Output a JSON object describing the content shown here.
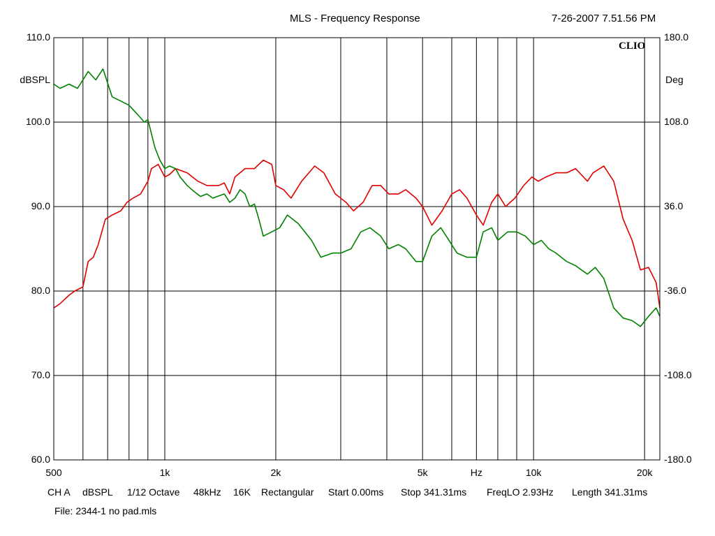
{
  "header": {
    "title": "MLS - Frequency Response",
    "timestamp": "7-26-2007 7.51.56 PM"
  },
  "brand": "CLIO",
  "footer": {
    "channel": "CH A",
    "unit": "dBSPL",
    "smoothing": "1/12 Octave",
    "sample_rate": "48kHz",
    "size": "16K",
    "window": "Rectangular",
    "start": "Start 0.00ms",
    "stop": "Stop 341.31ms",
    "freqlo": "FreqLO 2.93Hz",
    "length": "Length 341.31ms",
    "file": "File: 2344-1 no pad.mls"
  },
  "colors": {
    "magnitude": "#e00000",
    "phase": "#008000",
    "grid": "#000000"
  },
  "chart_data": {
    "type": "line",
    "title": "MLS - Frequency Response",
    "x_scale": "log",
    "xlim": [
      500,
      22000
    ],
    "x_tick_labels": [
      {
        "value": 500,
        "label": "500"
      },
      {
        "value": 1000,
        "label": "1k"
      },
      {
        "value": 2000,
        "label": "2k"
      },
      {
        "value": 5000,
        "label": "5k"
      },
      {
        "value": 7000,
        "label": "Hz"
      },
      {
        "value": 10000,
        "label": "10k"
      },
      {
        "value": 20000,
        "label": "20k"
      }
    ],
    "x_gridlines": [
      600,
      700,
      800,
      900,
      1000,
      2000,
      3000,
      4000,
      5000,
      6000,
      7000,
      8000,
      9000,
      10000,
      20000
    ],
    "left_axis": {
      "label": "dBSPL",
      "range": [
        60,
        110
      ],
      "ticks": [
        "110.0",
        "100.0",
        "90.0",
        "80.0",
        "70.0",
        "60.0"
      ]
    },
    "right_axis": {
      "label": "Deg",
      "range": [
        -180,
        180
      ],
      "ticks": [
        "180.0",
        "108.0",
        "36.0",
        "-36.0",
        "-108.0",
        "-180.0"
      ]
    },
    "grid": true,
    "series": [
      {
        "key": "magnitude",
        "axis": "left",
        "x": [
          500,
          520,
          550,
          570,
          600,
          620,
          640,
          660,
          690,
          720,
          760,
          790,
          820,
          860,
          900,
          920,
          960,
          1000,
          1030,
          1070,
          1150,
          1230,
          1300,
          1400,
          1450,
          1500,
          1550,
          1650,
          1750,
          1850,
          1950,
          2000,
          2100,
          2200,
          2350,
          2550,
          2700,
          2900,
          3100,
          3250,
          3450,
          3650,
          3850,
          4050,
          4300,
          4500,
          4800,
          5000,
          5300,
          5650,
          6000,
          6300,
          6600,
          7000,
          7300,
          7700,
          8000,
          8400,
          8900,
          9400,
          9900,
          10300,
          10800,
          11500,
          12300,
          13000,
          14000,
          14500,
          15500,
          16500,
          17500,
          18500,
          19500,
          20500,
          21500,
          22000
        ],
        "y": [
          78.0,
          78.5,
          79.5,
          80.0,
          80.5,
          83.5,
          84.0,
          85.5,
          88.5,
          89.0,
          89.5,
          90.5,
          91.0,
          91.5,
          93.0,
          94.5,
          95.0,
          93.5,
          93.8,
          94.5,
          94.0,
          93.0,
          92.5,
          92.5,
          92.8,
          91.5,
          93.5,
          94.5,
          94.5,
          95.5,
          95.0,
          92.5,
          92.0,
          91.0,
          93.0,
          94.8,
          94.0,
          91.5,
          90.5,
          89.5,
          90.5,
          92.5,
          92.5,
          91.5,
          91.5,
          92.0,
          91.0,
          90.0,
          87.8,
          89.5,
          91.5,
          92.0,
          91.0,
          89.0,
          87.8,
          90.5,
          91.5,
          90.0,
          91.0,
          92.5,
          93.5,
          93.0,
          93.5,
          94.0,
          94.0,
          94.5,
          93.0,
          94.0,
          94.8,
          93.0,
          88.5,
          86.0,
          82.5,
          82.8,
          81.0,
          78.0
        ]
      },
      {
        "key": "phase",
        "axis": "left",
        "x": [
          500,
          520,
          550,
          580,
          600,
          620,
          650,
          680,
          720,
          760,
          800,
          840,
          880,
          900,
          940,
          970,
          1000,
          1030,
          1070,
          1100,
          1150,
          1200,
          1250,
          1300,
          1350,
          1450,
          1500,
          1550,
          1600,
          1650,
          1700,
          1750,
          1800,
          1850,
          1950,
          2050,
          2150,
          2300,
          2500,
          2650,
          2850,
          3000,
          3200,
          3400,
          3600,
          3850,
          4050,
          4300,
          4500,
          4800,
          5000,
          5300,
          5600,
          5900,
          6200,
          6600,
          7000,
          7300,
          7700,
          8000,
          8500,
          9000,
          9500,
          10000,
          10500,
          11000,
          11500,
          12300,
          13000,
          14000,
          14700,
          15500,
          16500,
          17500,
          18500,
          19500,
          20500,
          21500,
          22000
        ],
        "y": [
          104.5,
          104.0,
          104.5,
          104.0,
          105.0,
          106.0,
          105.0,
          106.3,
          103.0,
          102.5,
          102.0,
          101.0,
          100.0,
          100.3,
          97.0,
          95.5,
          94.5,
          94.8,
          94.5,
          93.5,
          92.5,
          91.8,
          91.2,
          91.5,
          91.0,
          91.5,
          90.5,
          91.0,
          92.0,
          91.5,
          90.0,
          90.3,
          88.5,
          86.5,
          87.0,
          87.5,
          89.0,
          88.0,
          86.0,
          84.0,
          84.5,
          84.5,
          85.0,
          87.0,
          87.5,
          86.5,
          85.0,
          85.5,
          85.0,
          83.5,
          83.5,
          86.5,
          87.5,
          86.0,
          84.5,
          84.0,
          84.0,
          87.0,
          87.5,
          86.0,
          87.0,
          87.0,
          86.5,
          85.5,
          86.0,
          85.0,
          84.5,
          83.5,
          83.0,
          82.0,
          82.8,
          81.5,
          78.0,
          76.8,
          76.5,
          75.8,
          77.0,
          78.0,
          77.0
        ]
      }
    ]
  }
}
